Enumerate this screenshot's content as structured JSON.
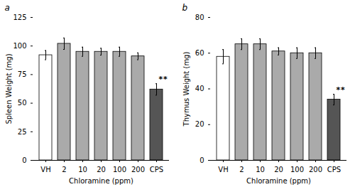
{
  "chart_data": [
    {
      "type": "bar",
      "title": "a",
      "categories": [
        "VH",
        "2",
        "10",
        "20",
        "100",
        "200",
        "CPS"
      ],
      "values": [
        92,
        102,
        95,
        95,
        95,
        91,
        62
      ],
      "errors": [
        4,
        5,
        4,
        3,
        4,
        3,
        5
      ],
      "colors": [
        "#ffffff",
        "#aaaaaa",
        "#aaaaaa",
        "#aaaaaa",
        "#aaaaaa",
        "#aaaaaa",
        "#555555"
      ],
      "xlabel": "Chloramine (ppm)",
      "ylabel": "Spleen Weight (mg)",
      "ylim": [
        0,
        125
      ],
      "yticks": [
        0,
        25,
        50,
        75,
        100,
        125
      ],
      "annotations": [
        {
          "category": "CPS",
          "text": "**"
        }
      ]
    },
    {
      "type": "bar",
      "title": "b",
      "categories": [
        "VH",
        "2",
        "10",
        "20",
        "100",
        "200",
        "CPS"
      ],
      "values": [
        58,
        65,
        65,
        61,
        60,
        60,
        34
      ],
      "errors": [
        4,
        3,
        3,
        2,
        3,
        3,
        3
      ],
      "colors": [
        "#ffffff",
        "#aaaaaa",
        "#aaaaaa",
        "#aaaaaa",
        "#aaaaaa",
        "#aaaaaa",
        "#555555"
      ],
      "xlabel": "Chloramine (ppm)",
      "ylabel": "Thymus Weight (mg)",
      "ylim": [
        0,
        80
      ],
      "yticks": [
        0,
        20,
        40,
        60,
        80
      ],
      "annotations": [
        {
          "category": "CPS",
          "text": "**"
        }
      ]
    }
  ]
}
